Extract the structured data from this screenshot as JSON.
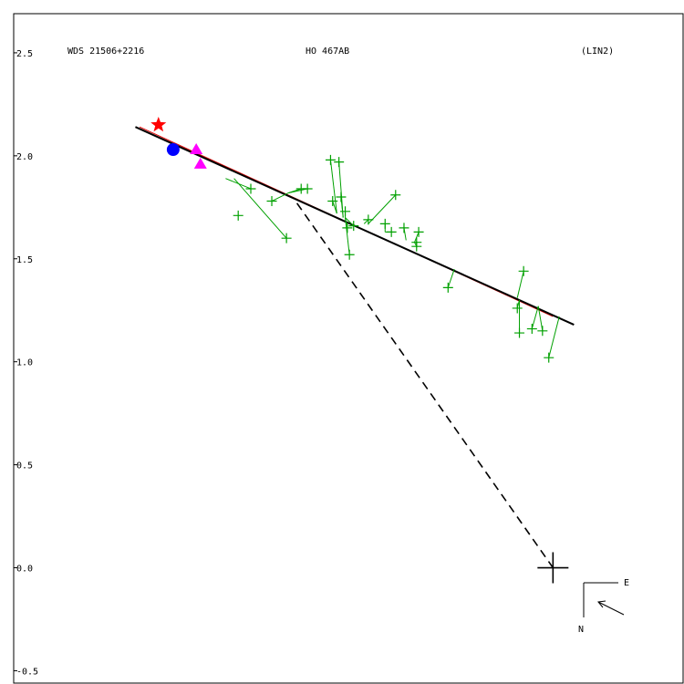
{
  "chart_data": {
    "type": "scatter",
    "header": {
      "left": "WDS 21506+2216",
      "center": "HO  467AB",
      "right": "(LIN2)"
    },
    "y_ticks": [
      {
        "value": 2.5,
        "label": "2.5"
      },
      {
        "value": 2.0,
        "label": "2.0"
      },
      {
        "value": 1.5,
        "label": "1.5"
      },
      {
        "value": 1.0,
        "label": "1.0"
      },
      {
        "value": 0.5,
        "label": "0.5"
      },
      {
        "value": 0.0,
        "label": "0.0"
      },
      {
        "value": -0.5,
        "label": "-0.5"
      }
    ],
    "xlim": [
      -2.57,
      0.62
    ],
    "ylim": [
      -0.56,
      2.69
    ],
    "primary": {
      "x": 0.0,
      "y": 0.0
    },
    "compass": {
      "east": "E",
      "north": "N"
    },
    "colors": {
      "observations": "#00a000",
      "linear_fit": "#000000",
      "alt_fit": "#e00000",
      "star": "#ff0000",
      "circle": "#0000ff",
      "triangle": "#ff00ff",
      "dashed": "#000000"
    },
    "fit_line": [
      [
        -1.99,
        2.14
      ],
      [
        0.1,
        1.18
      ]
    ],
    "alt_fit_line": [
      [
        -1.97,
        2.14
      ],
      [
        0.0,
        1.22
      ]
    ],
    "dashed_line": [
      [
        -1.22,
        1.77
      ],
      [
        0.0,
        0.0
      ]
    ],
    "observations": [
      {
        "x": -1.5,
        "y": 1.71,
        "fx": -1.5,
        "fy": 1.71
      },
      {
        "x": -1.44,
        "y": 1.84,
        "fx": -1.56,
        "fy": 1.89
      },
      {
        "x": -1.27,
        "y": 1.6,
        "fx": -1.52,
        "fy": 1.89
      },
      {
        "x": -1.34,
        "y": 1.78,
        "fx": -1.26,
        "fy": 1.82
      },
      {
        "x": -1.2,
        "y": 1.84,
        "fx": -1.26,
        "fy": 1.82
      },
      {
        "x": -1.17,
        "y": 1.84,
        "fx": -1.26,
        "fy": 1.82
      },
      {
        "x": -1.06,
        "y": 1.98,
        "fx": -1.03,
        "fy": 1.72
      },
      {
        "x": -1.02,
        "y": 1.97,
        "fx": -1.0,
        "fy": 1.7
      },
      {
        "x": -1.05,
        "y": 1.78,
        "fx": -1.03,
        "fy": 1.72
      },
      {
        "x": -1.01,
        "y": 1.8,
        "fx": -1.0,
        "fy": 1.7
      },
      {
        "x": -0.99,
        "y": 1.73,
        "fx": -0.99,
        "fy": 1.7
      },
      {
        "x": -0.98,
        "y": 1.65,
        "fx": -0.99,
        "fy": 1.7
      },
      {
        "x": -0.97,
        "y": 1.52,
        "fx": -0.99,
        "fy": 1.7
      },
      {
        "x": -0.95,
        "y": 1.66,
        "fx": -0.99,
        "fy": 1.7
      },
      {
        "x": -0.88,
        "y": 1.69,
        "fx": -0.9,
        "fy": 1.67
      },
      {
        "x": -0.75,
        "y": 1.81,
        "fx": -0.88,
        "fy": 1.67
      },
      {
        "x": -0.8,
        "y": 1.67,
        "fx": -0.8,
        "fy": 1.63
      },
      {
        "x": -0.77,
        "y": 1.63,
        "fx": -0.8,
        "fy": 1.63
      },
      {
        "x": -0.71,
        "y": 1.65,
        "fx": -0.7,
        "fy": 1.59
      },
      {
        "x": -0.64,
        "y": 1.63,
        "fx": -0.66,
        "fy": 1.58
      },
      {
        "x": -0.65,
        "y": 1.58,
        "fx": -0.66,
        "fy": 1.58
      },
      {
        "x": -0.65,
        "y": 1.56,
        "fx": -0.66,
        "fy": 1.58
      },
      {
        "x": -0.5,
        "y": 1.36,
        "fx": -0.47,
        "fy": 1.45
      },
      {
        "x": -0.14,
        "y": 1.44,
        "fx": -0.17,
        "fy": 1.31
      },
      {
        "x": -0.17,
        "y": 1.26,
        "fx": -0.16,
        "fy": 1.3
      },
      {
        "x": -0.16,
        "y": 1.14,
        "fx": -0.16,
        "fy": 1.3
      },
      {
        "x": -0.1,
        "y": 1.16,
        "fx": -0.07,
        "fy": 1.27
      },
      {
        "x": -0.05,
        "y": 1.15,
        "fx": -0.07,
        "fy": 1.27
      },
      {
        "x": -0.02,
        "y": 1.02,
        "fx": 0.03,
        "fy": 1.22
      }
    ],
    "star": [
      {
        "x": -1.88,
        "y": 2.15
      }
    ],
    "circles": [
      {
        "x": -1.81,
        "y": 2.03
      }
    ],
    "triangles": [
      {
        "x": -1.7,
        "y": 2.03
      },
      {
        "x": -1.68,
        "y": 1.96
      }
    ]
  }
}
